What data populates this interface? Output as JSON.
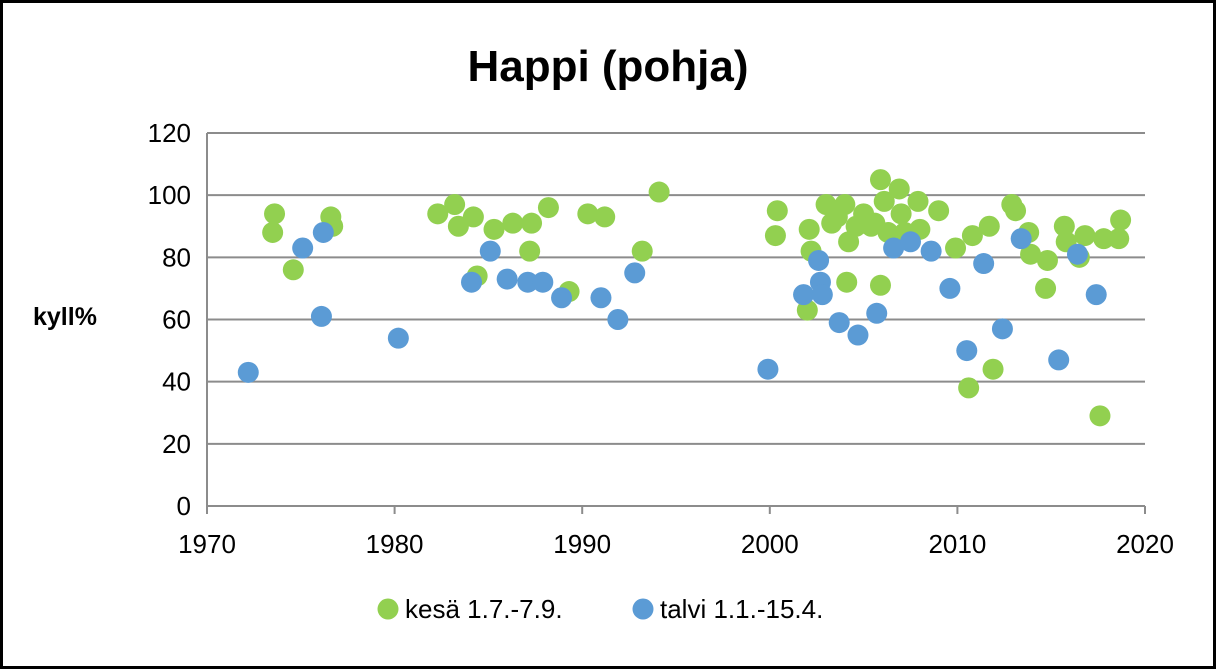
{
  "chart_data": {
    "type": "scatter",
    "title": "Happi (pohja)",
    "xlabel": "",
    "ylabel": "kyll%",
    "xlim": [
      1970,
      2020
    ],
    "ylim": [
      0,
      120
    ],
    "xticks": [
      1970,
      1980,
      1990,
      2000,
      2010,
      2020
    ],
    "yticks": [
      0,
      20,
      40,
      60,
      80,
      100,
      120
    ],
    "grid": "horizontal",
    "legend_position": "bottom",
    "series": [
      {
        "name": "kesä 1.7.-7.9.",
        "color": "#92d050",
        "points": [
          [
            1973.6,
            94
          ],
          [
            1973.5,
            88
          ],
          [
            1974.6,
            76
          ],
          [
            1976.6,
            93
          ],
          [
            1976.7,
            90
          ],
          [
            1982.3,
            94
          ],
          [
            1983.2,
            97
          ],
          [
            1983.4,
            90
          ],
          [
            1984.2,
            93
          ],
          [
            1984.4,
            74
          ],
          [
            1985.3,
            89
          ],
          [
            1986.3,
            91
          ],
          [
            1987.3,
            91
          ],
          [
            1987.2,
            82
          ],
          [
            1988.2,
            96
          ],
          [
            1989.3,
            69
          ],
          [
            1990.3,
            94
          ],
          [
            1991.2,
            93
          ],
          [
            1993.2,
            82
          ],
          [
            1994.1,
            101
          ],
          [
            2000.3,
            87
          ],
          [
            2000.4,
            95
          ],
          [
            2002.0,
            63
          ],
          [
            2002.1,
            89
          ],
          [
            2002.2,
            82
          ],
          [
            2003.0,
            97
          ],
          [
            2003.3,
            91
          ],
          [
            2003.6,
            93
          ],
          [
            2004.0,
            97
          ],
          [
            2004.2,
            85
          ],
          [
            2004.1,
            72
          ],
          [
            2004.6,
            90
          ],
          [
            2005.0,
            94
          ],
          [
            2005.4,
            90
          ],
          [
            2005.6,
            91
          ],
          [
            2005.9,
            105
          ],
          [
            2006.1,
            98
          ],
          [
            2006.3,
            88
          ],
          [
            2005.9,
            71
          ],
          [
            2006.9,
            102
          ],
          [
            2007.0,
            94
          ],
          [
            2007.2,
            88
          ],
          [
            2007.9,
            98
          ],
          [
            2008.0,
            89
          ],
          [
            2009.0,
            95
          ],
          [
            2009.9,
            83
          ],
          [
            2010.6,
            38
          ],
          [
            2010.8,
            87
          ],
          [
            2011.7,
            90
          ],
          [
            2011.9,
            44
          ],
          [
            2012.9,
            97
          ],
          [
            2013.1,
            95
          ],
          [
            2013.8,
            88
          ],
          [
            2013.9,
            81
          ],
          [
            2014.8,
            79
          ],
          [
            2014.7,
            70
          ],
          [
            2015.7,
            90
          ],
          [
            2015.8,
            85
          ],
          [
            2016.5,
            80
          ],
          [
            2016.8,
            87
          ],
          [
            2017.6,
            29
          ],
          [
            2017.8,
            86
          ],
          [
            2018.7,
            92
          ],
          [
            2018.6,
            86
          ]
        ]
      },
      {
        "name": "talvi 1.1.-15.4.",
        "color": "#5b9bd5",
        "points": [
          [
            1972.2,
            43
          ],
          [
            1975.1,
            83
          ],
          [
            1976.1,
            61
          ],
          [
            1976.2,
            88
          ],
          [
            1980.2,
            54
          ],
          [
            1984.1,
            72
          ],
          [
            1985.1,
            82
          ],
          [
            1986.0,
            73
          ],
          [
            1987.1,
            72
          ],
          [
            1987.9,
            72
          ],
          [
            1988.9,
            67
          ],
          [
            1991.0,
            67
          ],
          [
            1991.9,
            60
          ],
          [
            1992.8,
            75
          ],
          [
            1999.9,
            44
          ],
          [
            2001.8,
            68
          ],
          [
            2002.6,
            79
          ],
          [
            2002.7,
            72
          ],
          [
            2002.8,
            68
          ],
          [
            2003.7,
            59
          ],
          [
            2004.7,
            55
          ],
          [
            2005.7,
            62
          ],
          [
            2006.6,
            83
          ],
          [
            2007.5,
            85
          ],
          [
            2008.6,
            82
          ],
          [
            2009.6,
            70
          ],
          [
            2010.5,
            50
          ],
          [
            2011.4,
            78
          ],
          [
            2012.4,
            57
          ],
          [
            2013.4,
            86
          ],
          [
            2015.4,
            47
          ],
          [
            2016.4,
            81
          ],
          [
            2017.4,
            68
          ]
        ]
      }
    ]
  }
}
